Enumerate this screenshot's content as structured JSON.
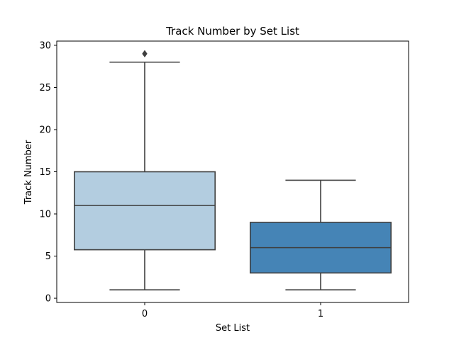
{
  "chart_data": {
    "type": "box",
    "title": "Track Number by Set List",
    "xlabel": "Set List",
    "ylabel": "Track Number",
    "categories": [
      "0",
      "1"
    ],
    "ylim": [
      -0.5,
      30.5
    ],
    "yticks": [
      0,
      5,
      10,
      15,
      20,
      25,
      30
    ],
    "grid": false,
    "boxes": [
      {
        "category": "0",
        "whisker_low": 1,
        "q1": 5.75,
        "median": 11,
        "q3": 15,
        "whisker_high": 28,
        "outliers": [
          29
        ],
        "color": "#b3cde0"
      },
      {
        "category": "1",
        "whisker_low": 1,
        "q1": 3,
        "median": 6,
        "q3": 9,
        "whisker_high": 14,
        "outliers": [],
        "color": "#4584b6"
      }
    ]
  }
}
